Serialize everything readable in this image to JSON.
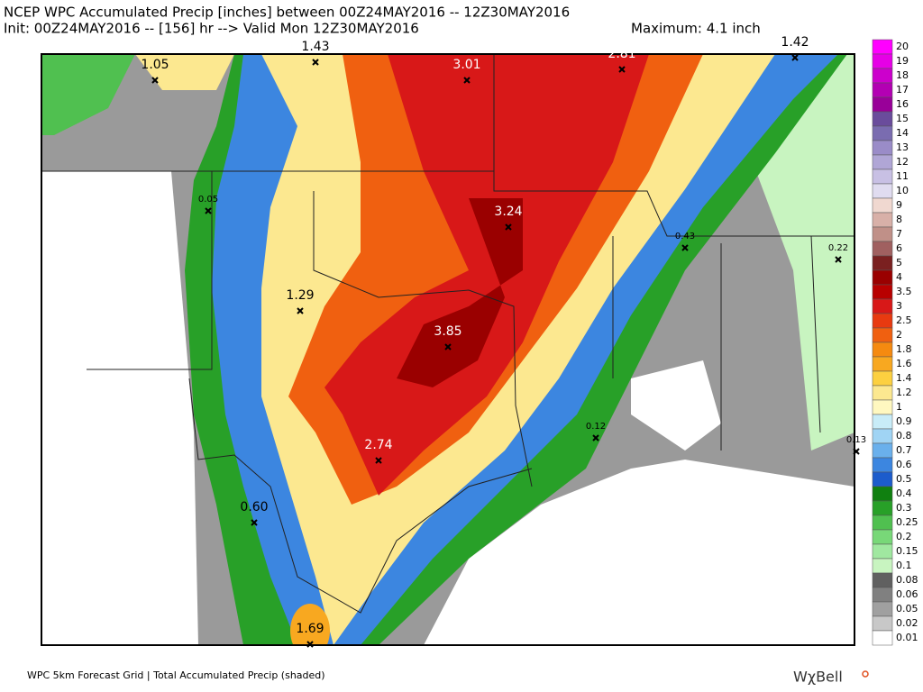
{
  "header": {
    "line1": "NCEP WPC Accumulated Precip [inches] between 00Z24MAY2016 -- 12Z30MAY2016",
    "line2": "Init: 00Z24MAY2016 -- [156] hr --> Valid Mon 12Z30MAY2016",
    "maximum": "Maximum: 4.1 inch"
  },
  "markers": [
    "1.05",
    "1.43",
    "3.01",
    "2.81",
    "1.42",
    "0.05",
    "3.24",
    "0.43",
    "0.22",
    "1.29",
    "3.85",
    "0.12",
    "0.13",
    "2.74",
    "0.60",
    "1.69"
  ],
  "colorbar": [
    {
      "label": "20",
      "color": "#ff00ff"
    },
    {
      "label": "19",
      "color": "#e600e6"
    },
    {
      "label": "18",
      "color": "#cc00cc"
    },
    {
      "label": "17",
      "color": "#b300b3"
    },
    {
      "label": "16",
      "color": "#990099"
    },
    {
      "label": "15",
      "color": "#6a4c9c"
    },
    {
      "label": "14",
      "color": "#7a6cb0"
    },
    {
      "label": "13",
      "color": "#9a8cc8"
    },
    {
      "label": "12",
      "color": "#b0a6d6"
    },
    {
      "label": "11",
      "color": "#c8c0e4"
    },
    {
      "label": "10",
      "color": "#e0dcf0"
    },
    {
      "label": "9",
      "color": "#f0d8d0"
    },
    {
      "label": "8",
      "color": "#d8b0a8"
    },
    {
      "label": "7",
      "color": "#c09088"
    },
    {
      "label": "6",
      "color": "#a06060"
    },
    {
      "label": "5",
      "color": "#7a2020"
    },
    {
      "label": "4",
      "color": "#9a0000"
    },
    {
      "label": "3.5",
      "color": "#b80000"
    },
    {
      "label": "3",
      "color": "#d81818"
    },
    {
      "label": "2.5",
      "color": "#e83a10"
    },
    {
      "label": "2",
      "color": "#f06010"
    },
    {
      "label": "1.8",
      "color": "#f58a10"
    },
    {
      "label": "1.6",
      "color": "#f8a820"
    },
    {
      "label": "1.4",
      "color": "#fcd040"
    },
    {
      "label": "1.2",
      "color": "#fce890"
    },
    {
      "label": "1",
      "color": "#fff8c0"
    },
    {
      "label": "0.9",
      "color": "#c8ecf8"
    },
    {
      "label": "0.8",
      "color": "#a0d4f4"
    },
    {
      "label": "0.7",
      "color": "#6ab0ec"
    },
    {
      "label": "0.6",
      "color": "#3c86e0"
    },
    {
      "label": "0.5",
      "color": "#1c5ccc"
    },
    {
      "label": "0.4",
      "color": "#108010"
    },
    {
      "label": "0.3",
      "color": "#28a028"
    },
    {
      "label": "0.25",
      "color": "#50c050"
    },
    {
      "label": "0.2",
      "color": "#78d878"
    },
    {
      "label": "0.15",
      "color": "#a0e8a0"
    },
    {
      "label": "0.1",
      "color": "#c8f4c0"
    },
    {
      "label": "0.08",
      "color": "#606060"
    },
    {
      "label": "0.06",
      "color": "#808080"
    },
    {
      "label": "0.05",
      "color": "#a0a0a0"
    },
    {
      "label": "0.02",
      "color": "#c8c8c8"
    },
    {
      "label": "0.01",
      "color": "#ffffff"
    }
  ],
  "footer": {
    "caption": "WPC 5km Forecast Grid | Total Accumulated Precip (shaded)",
    "logo": "WχBell"
  }
}
